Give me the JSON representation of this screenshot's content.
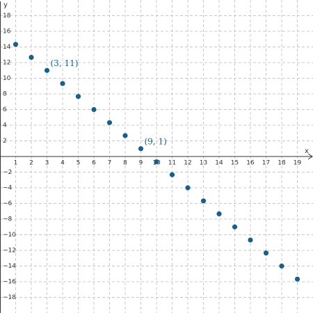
{
  "chart_data": {
    "type": "scatter",
    "x_label": "x",
    "y_label": "y",
    "xlim": [
      0,
      20
    ],
    "ylim": [
      -20,
      20
    ],
    "xticks": [
      1,
      2,
      3,
      4,
      5,
      6,
      7,
      8,
      9,
      10,
      11,
      12,
      13,
      14,
      15,
      16,
      17,
      18,
      19
    ],
    "yticks": [
      {
        "value": -18,
        "label": "−18"
      },
      {
        "value": -16,
        "label": "−16"
      },
      {
        "value": -14,
        "label": "−14"
      },
      {
        "value": -12,
        "label": "−12"
      },
      {
        "value": -10,
        "label": "−10"
      },
      {
        "value": -8,
        "label": "−8"
      },
      {
        "value": -6,
        "label": "−6"
      },
      {
        "value": -4,
        "label": "−4"
      },
      {
        "value": -2,
        "label": "−2"
      },
      2,
      4,
      6,
      8,
      10,
      12,
      14,
      16,
      18
    ],
    "grid": true,
    "x": [
      1,
      2,
      3,
      4,
      5,
      6,
      7,
      8,
      9,
      10,
      11,
      12,
      13,
      14,
      15,
      16,
      17,
      18,
      19
    ],
    "series": [
      {
        "color": "#1a5f8a",
        "values": [
          14.33,
          12.67,
          11,
          9.33,
          7.67,
          6,
          4.33,
          2.67,
          1,
          -0.67,
          -2.33,
          -4,
          -5.67,
          -7.33,
          -9,
          -10.67,
          -12.33,
          -14,
          -15.67
        ]
      }
    ],
    "annotations": [
      {
        "text": "(3, 11)",
        "x": 3,
        "y": 11
      },
      {
        "text": "(9, 1)",
        "x": 9,
        "y": 1
      }
    ]
  }
}
